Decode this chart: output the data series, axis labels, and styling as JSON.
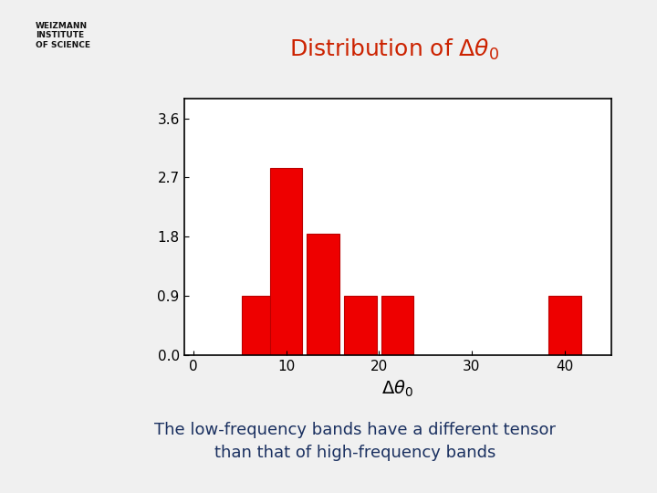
{
  "title": "Distribution of $\\Delta\\theta_0$",
  "title_color": "#cc2200",
  "bar_positions": [
    7,
    10,
    14,
    18,
    22,
    40
  ],
  "bar_heights": [
    0.9,
    2.85,
    1.85,
    0.9,
    0.9,
    0.9
  ],
  "bar_width": 3.5,
  "bar_color": "#ee0000",
  "bar_edgecolor": "#bb0000",
  "xlabel": "$\\Delta\\theta_0$",
  "yticks": [
    0.0,
    0.9,
    1.8,
    2.7,
    3.6
  ],
  "xticks": [
    0,
    10,
    20,
    30,
    40
  ],
  "xlim": [
    -1,
    45
  ],
  "ylim": [
    0,
    3.9
  ],
  "slide_bg": "#f0f0f0",
  "content_bg": "#ffffff",
  "left_sidebar_color": "#8fbc6f",
  "top_bar_color": "#8fbc6f",
  "annotation_text": "The low-frequency bands have a different tensor\nthan that of high-frequency bands",
  "annotation_bg": "#ffffcc",
  "annotation_text_color": "#1a3060",
  "title_fontsize": 18,
  "tick_fontsize": 11,
  "xlabel_fontsize": 14,
  "ann_fontsize": 13
}
